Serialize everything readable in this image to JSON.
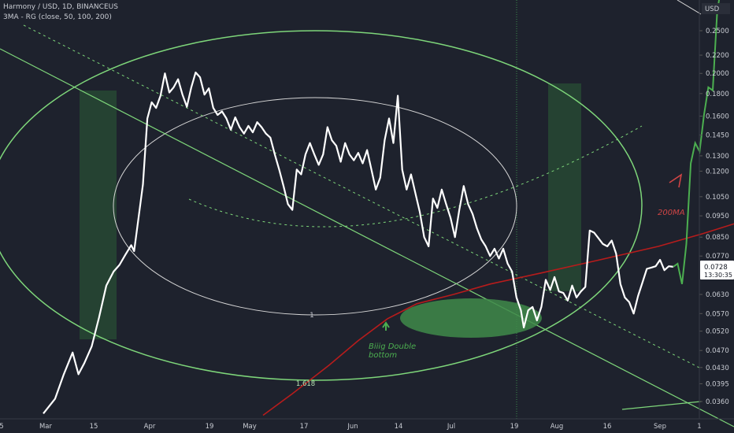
{
  "chart_data": {
    "type": "line",
    "title": "Harmony / USD, 1D, BINANCEUS",
    "indicator": "3MA - RG (close, 50, 100, 200)",
    "currency": "USD",
    "y_scale": "log",
    "ylim": [
      0.0335,
      0.33
    ],
    "y_ticks": [
      "0.2500",
      "0.2200",
      "0.2000",
      "0.1800",
      "0.1600",
      "0.1450",
      "0.1300",
      "0.1200",
      "0.1050",
      "0.0950",
      "0.0850",
      "0.0770",
      "0.0630",
      "0.0570",
      "0.0520",
      "0.0470",
      "0.0430",
      "0.0395",
      "0.0360"
    ],
    "x_tick_labels": [
      "5",
      "Mar",
      "15",
      "Apr",
      "19",
      "May",
      "17",
      "Jun",
      "14",
      "Jul",
      "19",
      "Aug",
      "16",
      "Sep",
      "1"
    ],
    "current_price": "0.0728",
    "countdown": "13:30:35",
    "series": [
      {
        "name": "",
        "color": "#ffffff",
        "values": [
          [
            0,
            0.0338
          ],
          [
            8,
            0.0365
          ],
          [
            14,
            0.0415
          ],
          [
            20,
            0.0465
          ],
          [
            24,
            0.0415
          ],
          [
            28,
            0.044
          ],
          [
            33,
            0.048
          ],
          [
            38,
            0.0558
          ],
          [
            43,
            0.066
          ],
          [
            48,
            0.071
          ],
          [
            52,
            0.0735
          ],
          [
            56,
            0.0775
          ],
          [
            60,
            0.0815
          ],
          [
            62,
            0.079
          ],
          [
            65,
            0.094
          ],
          [
            68,
            0.112
          ],
          [
            71,
            0.158
          ],
          [
            74,
            0.172
          ],
          [
            77,
            0.167
          ],
          [
            80,
            0.178
          ],
          [
            83,
            0.2
          ],
          [
            86,
            0.181
          ],
          [
            89,
            0.186
          ],
          [
            92,
            0.194
          ],
          [
            95,
            0.179
          ],
          [
            98,
            0.168
          ],
          [
            101,
            0.186
          ],
          [
            104,
            0.201
          ],
          [
            107,
            0.196
          ],
          [
            110,
            0.179
          ],
          [
            113,
            0.185
          ],
          [
            116,
            0.167
          ],
          [
            119,
            0.161
          ],
          [
            122,
            0.164
          ],
          [
            125,
            0.158
          ],
          [
            128,
            0.149
          ],
          [
            131,
            0.159
          ],
          [
            134,
            0.151
          ],
          [
            137,
            0.146
          ],
          [
            140,
            0.152
          ],
          [
            143,
            0.147
          ],
          [
            146,
            0.155
          ],
          [
            149,
            0.151
          ],
          [
            152,
            0.146
          ],
          [
            155,
            0.143
          ],
          [
            158,
            0.131
          ],
          [
            161,
            0.121
          ],
          [
            164,
            0.111
          ],
          [
            167,
            0.101
          ],
          [
            170,
            0.098
          ],
          [
            173,
            0.121
          ],
          [
            176,
            0.118
          ],
          [
            179,
            0.131
          ],
          [
            182,
            0.139
          ],
          [
            185,
            0.131
          ],
          [
            188,
            0.124
          ],
          [
            191,
            0.131
          ],
          [
            194,
            0.151
          ],
          [
            197,
            0.141
          ],
          [
            200,
            0.137
          ],
          [
            203,
            0.126
          ],
          [
            206,
            0.139
          ],
          [
            209,
            0.131
          ],
          [
            212,
            0.127
          ],
          [
            215,
            0.132
          ],
          [
            218,
            0.125
          ],
          [
            221,
            0.134
          ],
          [
            224,
            0.121
          ],
          [
            227,
            0.109
          ],
          [
            230,
            0.116
          ],
          [
            233,
            0.141
          ],
          [
            236,
            0.158
          ],
          [
            239,
            0.139
          ],
          [
            242,
            0.178
          ],
          [
            245,
            0.121
          ],
          [
            248,
            0.109
          ],
          [
            251,
            0.118
          ],
          [
            254,
            0.107
          ],
          [
            257,
            0.097
          ],
          [
            260,
            0.085
          ],
          [
            263,
            0.081
          ],
          [
            266,
            0.104
          ],
          [
            269,
            0.099
          ],
          [
            272,
            0.109
          ],
          [
            275,
            0.101
          ],
          [
            278,
            0.094
          ],
          [
            281,
            0.085
          ],
          [
            284,
            0.098
          ],
          [
            287,
            0.111
          ],
          [
            290,
            0.101
          ],
          [
            293,
            0.096
          ],
          [
            296,
            0.089
          ],
          [
            299,
            0.084
          ],
          [
            302,
            0.081
          ],
          [
            305,
            0.077
          ],
          [
            308,
            0.08
          ],
          [
            311,
            0.076
          ],
          [
            314,
            0.08
          ],
          [
            317,
            0.074
          ],
          [
            320,
            0.071
          ],
          [
            323,
            0.062
          ],
          [
            326,
            0.058
          ],
          [
            328,
            0.053
          ],
          [
            331,
            0.058
          ],
          [
            334,
            0.059
          ],
          [
            337,
            0.055
          ],
          [
            340,
            0.059
          ],
          [
            343,
            0.068
          ],
          [
            346,
            0.0645
          ],
          [
            349,
            0.069
          ],
          [
            352,
            0.064
          ],
          [
            355,
            0.0635
          ],
          [
            358,
            0.061
          ],
          [
            361,
            0.066
          ],
          [
            364,
            0.062
          ],
          [
            367,
            0.064
          ],
          [
            370,
            0.0655
          ],
          [
            373,
            0.088
          ],
          [
            376,
            0.087
          ],
          [
            379,
            0.0845
          ],
          [
            382,
            0.082
          ],
          [
            385,
            0.081
          ],
          [
            388,
            0.0835
          ],
          [
            391,
            0.078
          ],
          [
            394,
            0.0665
          ],
          [
            397,
            0.062
          ],
          [
            400,
            0.0605
          ],
          [
            403,
            0.057
          ],
          [
            406,
            0.0625
          ],
          [
            409,
            0.067
          ],
          [
            412,
            0.072
          ],
          [
            415,
            0.0725
          ],
          [
            418,
            0.073
          ],
          [
            421,
            0.0755
          ],
          [
            424,
            0.0715
          ],
          [
            427,
            0.073
          ],
          [
            430,
            0.0728
          ]
        ]
      },
      {
        "name": "",
        "color": "#4caf50",
        "values": [
          [
            430,
            0.0728
          ],
          [
            433,
            0.074
          ],
          [
            436,
            0.0665
          ],
          [
            439,
            0.082
          ],
          [
            442,
            0.125
          ],
          [
            445,
            0.139
          ],
          [
            448,
            0.133
          ],
          [
            451,
            0.161
          ],
          [
            454,
            0.186
          ],
          [
            457,
            0.183
          ],
          [
            460,
            0.275
          ],
          [
            463,
            0.32
          ],
          [
            466,
            0.33
          ],
          [
            469,
            0.325
          ]
        ]
      },
      {
        "name": "200MA",
        "color": "#b71c1c",
        "values": [
          [
            150,
            0.0335
          ],
          [
            170,
            0.0375
          ],
          [
            195,
            0.0435
          ],
          [
            215,
            0.0495
          ],
          [
            235,
            0.0555
          ],
          [
            255,
            0.06
          ],
          [
            280,
            0.063
          ],
          [
            305,
            0.0665
          ],
          [
            340,
            0.0705
          ],
          [
            380,
            0.0755
          ],
          [
            420,
            0.081
          ],
          [
            450,
            0.0865
          ],
          [
            480,
            0.093
          ],
          [
            505,
            0.101
          ],
          [
            523,
            0.11
          ]
        ]
      }
    ],
    "annotations": [
      "1",
      "1.618",
      "Biiig Double bottom",
      "200MA"
    ],
    "theme": {
      "background": "#1e222d",
      "price_line": "#ffffff",
      "forecast_line": "#4caf50",
      "ma_line": "#b71c1c",
      "ellipse": "#7ed67a",
      "inner_ellipse": "#d7d7d7",
      "label_green": "#4caf50",
      "label_red": "#d04545",
      "badge_bg": "#ffffff",
      "badge_text": "#131722"
    }
  }
}
